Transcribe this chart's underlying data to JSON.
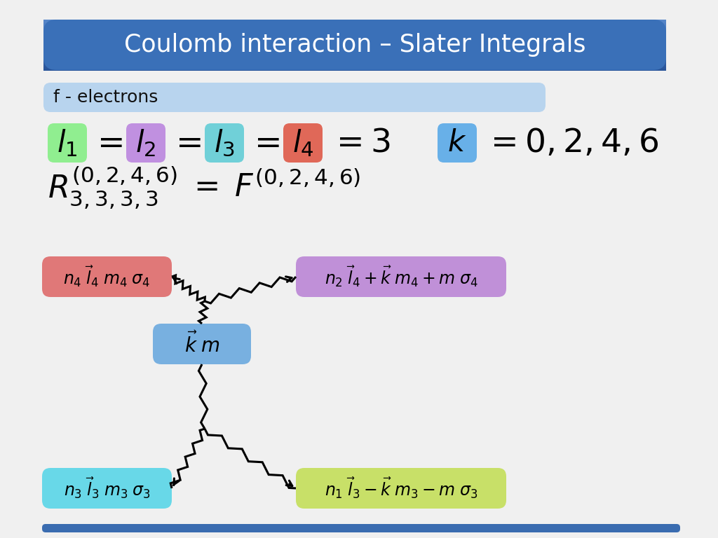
{
  "title": "Coulomb interaction – Slater Integrals",
  "subtitle": "f - electrons",
  "bg_color": "#f0f0f0",
  "title_color_top": "#5585c8",
  "title_color_bot": "#2a559a",
  "title_text_color": "#ffffff",
  "subtitle_bg": "#b8d4ee",
  "box_colors_l": [
    "#90ee90",
    "#c090e0",
    "#70d0d8",
    "#e06858"
  ],
  "box_labels_l": [
    "$l_1$",
    "$l_2$",
    "$l_3$",
    "$l_4$"
  ],
  "box_k_color": "#68b0e8",
  "box_n4_color": "#e07878",
  "box_n2_color": "#c090d8",
  "box_km_color": "#78b0e0",
  "box_n3_color": "#68d8e8",
  "box_n1_color": "#c8e068",
  "bottom_bar_color": "#3a6cb0"
}
